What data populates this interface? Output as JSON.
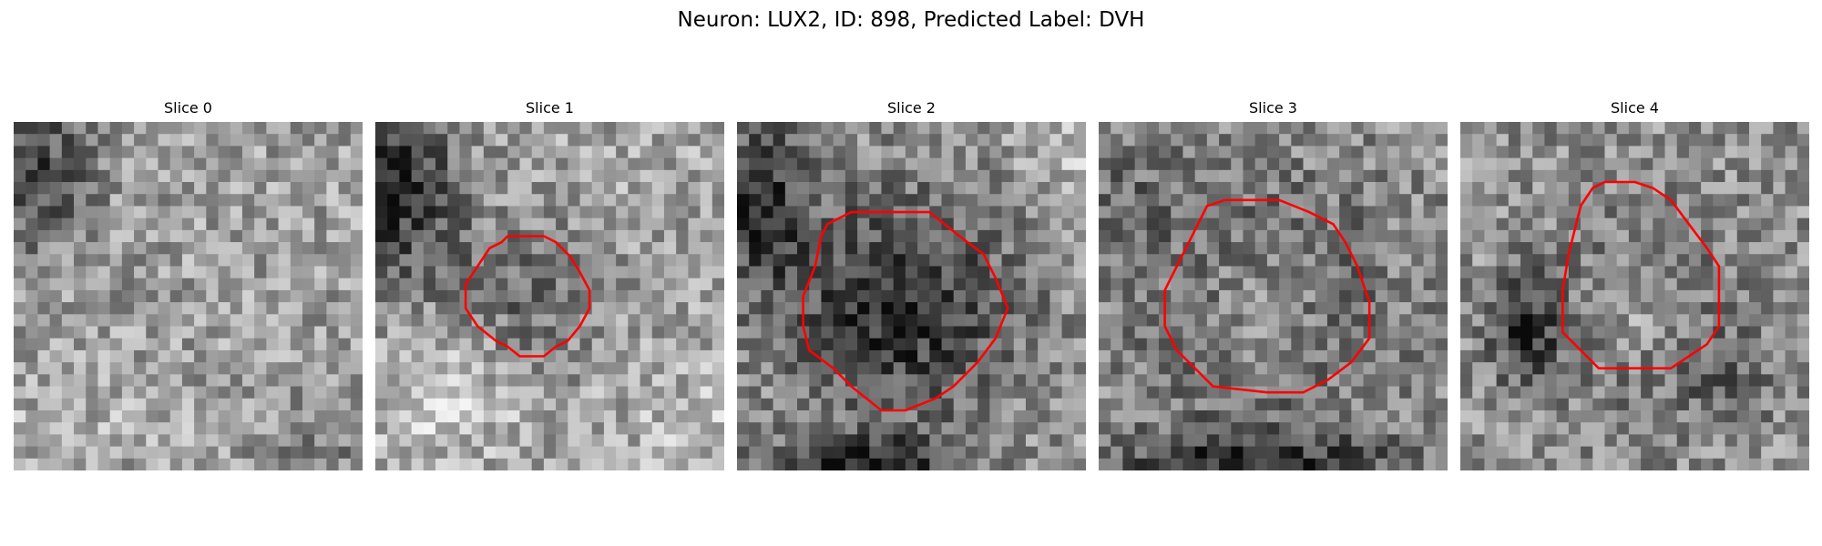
{
  "figure": {
    "title": "Neuron: LUX2, ID: 898, Predicted Label: DVH"
  },
  "panels": [
    {
      "title": "Slice 0",
      "has_contour": false,
      "contour_color": "#ff0000"
    },
    {
      "title": "Slice 1",
      "has_contour": true,
      "contour_color": "#ff0000"
    },
    {
      "title": "Slice 2",
      "has_contour": true,
      "contour_color": "#ff0000"
    },
    {
      "title": "Slice 3",
      "has_contour": true,
      "contour_color": "#ff0000"
    },
    {
      "title": "Slice 4",
      "has_contour": true,
      "contour_color": "#ff0000"
    }
  ],
  "colormap": "gray"
}
